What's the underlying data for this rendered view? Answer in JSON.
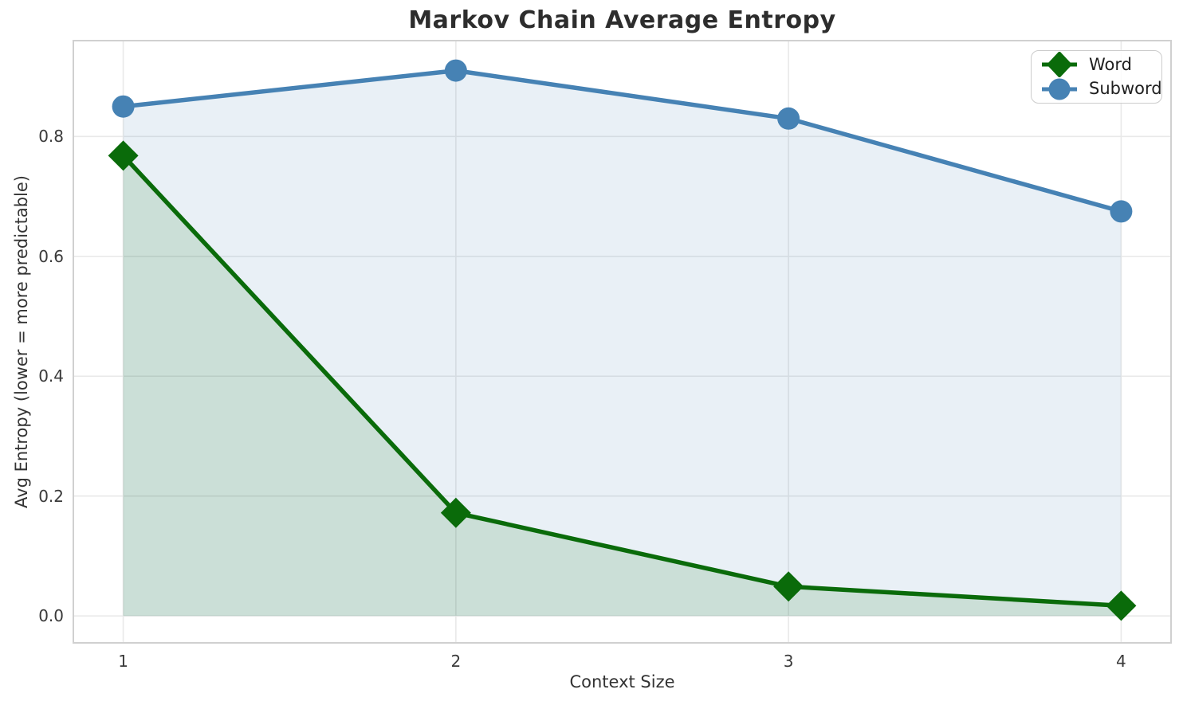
{
  "chart_data": {
    "type": "line",
    "title": "Markov Chain Average Entropy",
    "xlabel": "Context Size",
    "ylabel": "Avg Entropy (lower = more predictable)",
    "x": [
      1,
      2,
      3,
      4
    ],
    "x_tick_labels": [
      "1",
      "2",
      "3",
      "4"
    ],
    "y_ticks": [
      0.0,
      0.2,
      0.4,
      0.6,
      0.8
    ],
    "y_tick_labels": [
      "0.0",
      "0.2",
      "0.4",
      "0.6",
      "0.8"
    ],
    "xlim": [
      0.85,
      4.15
    ],
    "ylim": [
      -0.045,
      0.96
    ],
    "grid": true,
    "legend_position": "upper right",
    "series": [
      {
        "name": "Word",
        "values": [
          0.768,
          0.172,
          0.049,
          0.017
        ],
        "color": "#0a6b0a",
        "marker": "diamond",
        "fill_to_zero": true,
        "fill_alpha": 0.13
      },
      {
        "name": "Subword",
        "values": [
          0.85,
          0.91,
          0.83,
          0.675
        ],
        "color": "#4682b4",
        "marker": "circle",
        "fill_to_zero": true,
        "fill_alpha": 0.12
      }
    ],
    "colors": {
      "grid": "#e9e9e9",
      "spine": "#d0d0d0",
      "title_text": "#2d2d2d",
      "tick_text": "#3a3a3a",
      "background": "#ffffff"
    }
  }
}
